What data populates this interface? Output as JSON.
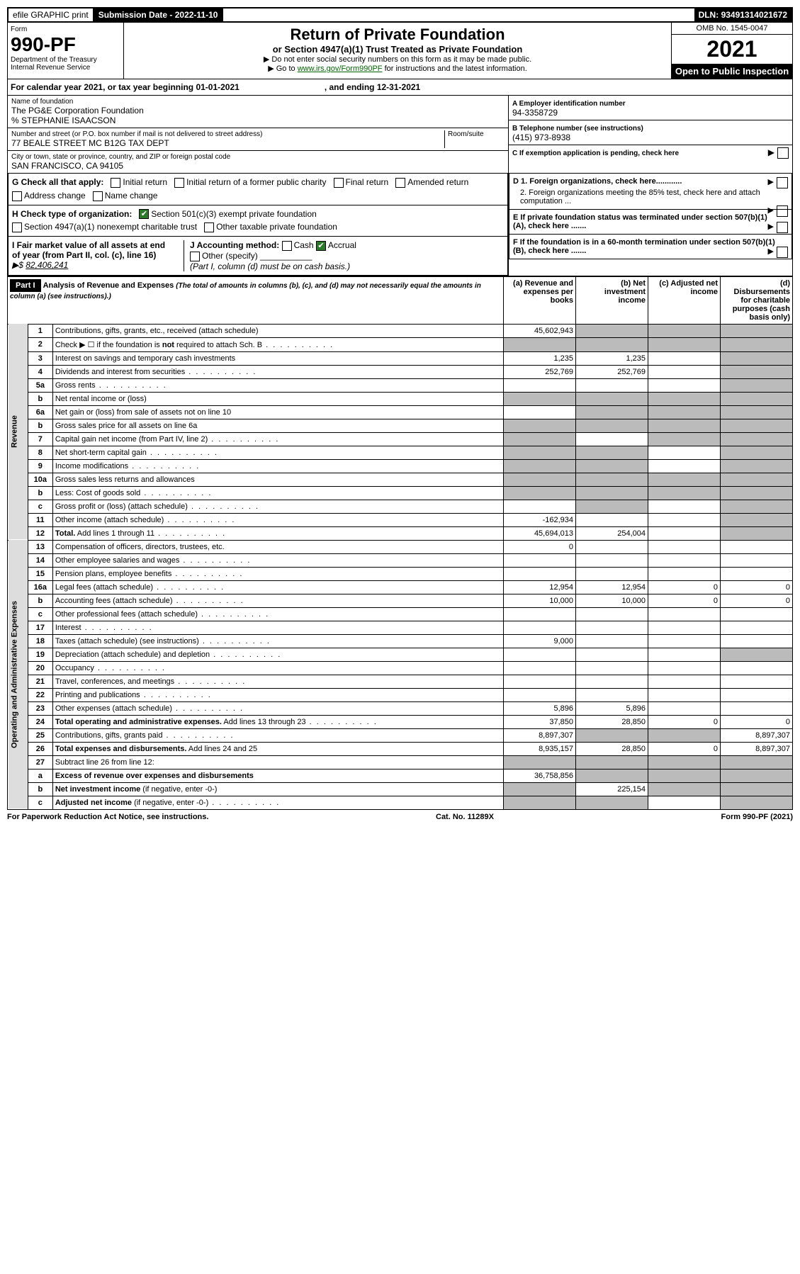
{
  "top": {
    "efile": "efile GRAPHIC print",
    "subdate_lbl": "Submission Date - ",
    "subdate": "2022-11-10",
    "dln_lbl": "DLN: ",
    "dln": "93491314021672"
  },
  "hdr": {
    "form": "Form",
    "formno": "990-PF",
    "dept": "Department of the Treasury",
    "irs": "Internal Revenue Service",
    "title": "Return of Private Foundation",
    "sub": "or Section 4947(a)(1) Trust Treated as Private Foundation",
    "i1": "▶ Do not enter social security numbers on this form as it may be made public.",
    "i2": "▶ Go to ",
    "i2link": "www.irs.gov/Form990PF",
    "i2b": " for instructions and the latest information.",
    "omb": "OMB No. 1545-0047",
    "year": "2021",
    "open": "Open to Public Inspection"
  },
  "cal": {
    "a": "For calendar year 2021, or tax year beginning 01-01-2021",
    "b": ", and ending 12-31-2021"
  },
  "name": {
    "lbl": "Name of foundation",
    "v": "The PG&E Corporation Foundation",
    "c": "% STEPHANIE ISAACSON",
    "addr_lbl": "Number and street (or P.O. box number if mail is not delivered to street address)",
    "addr": "77 BEALE STREET MC B12G TAX DEPT",
    "room": "Room/suite",
    "city_lbl": "City or town, state or province, country, and ZIP or foreign postal code",
    "city": "SAN FRANCISCO, CA  94105"
  },
  "r": {
    "A_lbl": "A Employer identification number",
    "A": "94-3358729",
    "B_lbl": "B Telephone number (see instructions)",
    "B": "(415) 973-8938",
    "C": "C If exemption application is pending, check here",
    "D1": "D 1. Foreign organizations, check here............",
    "D2": "2. Foreign organizations meeting the 85% test, check here and attach computation ...",
    "E": "E  If private foundation status was terminated under section 507(b)(1)(A), check here .......",
    "F": "F  If the foundation is in a 60-month termination under section 507(b)(1)(B), check here ......."
  },
  "G": {
    "lbl": "G Check all that apply:",
    "o1": "Initial return",
    "o2": "Initial return of a former public charity",
    "o3": "Final return",
    "o4": "Amended return",
    "o5": "Address change",
    "o6": "Name change"
  },
  "H": {
    "lbl": "H Check type of organization:",
    "o1": "Section 501(c)(3) exempt private foundation",
    "o2": "Section 4947(a)(1) nonexempt charitable trust",
    "o3": "Other taxable private foundation"
  },
  "I": {
    "lbl": "I Fair market value of all assets at end of year (from Part II, col. (c), line 16)",
    "pre": "▶$",
    "v": "82,406,241"
  },
  "J": {
    "lbl": "J Accounting method:",
    "o1": "Cash",
    "o2": "Accrual",
    "o3": "Other (specify)",
    "note": "(Part I, column (d) must be on cash basis.)"
  },
  "p1": {
    "part": "Part I",
    "title": "Analysis of Revenue and Expenses",
    "note": "(The total of amounts in columns (b), (c), and (d) may not necessarily equal the amounts in column (a) (see instructions).)",
    "ca": "(a)   Revenue and expenses per books",
    "cb": "(b)   Net investment income",
    "cc": "(c)   Adjusted net income",
    "cd": "(d)  Disbursements for charitable purposes (cash basis only)"
  },
  "side": {
    "rev": "Revenue",
    "exp": "Operating and Administrative Expenses"
  },
  "rows": [
    {
      "n": "1",
      "d": "Contributions, gifts, grants, etc., received (attach schedule)",
      "a": "45,602,943",
      "gb": true,
      "gc": true,
      "gd": true
    },
    {
      "n": "2",
      "d": "Check ▶ ☐ if the foundation is <b>not</b> required to attach Sch. B",
      "dots": true,
      "ga": true,
      "gb": true,
      "gc": true,
      "gd": true
    },
    {
      "n": "3",
      "d": "Interest on savings and temporary cash investments",
      "a": "1,235",
      "b": "1,235",
      "gd": true
    },
    {
      "n": "4",
      "d": "Dividends and interest from securities",
      "dots": true,
      "a": "252,769",
      "b": "252,769",
      "gd": true
    },
    {
      "n": "5a",
      "d": "Gross rents",
      "dots": true,
      "gd": true
    },
    {
      "n": "b",
      "d": "Net rental income or (loss)",
      "ga": true,
      "gb": true,
      "gc": true,
      "gd": true
    },
    {
      "n": "6a",
      "d": "Net gain or (loss) from sale of assets not on line 10",
      "gb": true,
      "gc": true,
      "gd": true
    },
    {
      "n": "b",
      "d": "Gross sales price for all assets on line 6a",
      "ga": true,
      "gb": true,
      "gc": true,
      "gd": true
    },
    {
      "n": "7",
      "d": "Capital gain net income (from Part IV, line 2)",
      "dots": true,
      "ga": true,
      "gc": true,
      "gd": true
    },
    {
      "n": "8",
      "d": "Net short-term capital gain",
      "dots": true,
      "ga": true,
      "gb": true,
      "gd": true
    },
    {
      "n": "9",
      "d": "Income modifications",
      "dots": true,
      "ga": true,
      "gb": true,
      "gd": true
    },
    {
      "n": "10a",
      "d": "Gross sales less returns and allowances",
      "ga": true,
      "gb": true,
      "gc": true,
      "gd": true
    },
    {
      "n": "b",
      "d": "Less: Cost of goods sold",
      "dots": true,
      "ga": true,
      "gb": true,
      "gc": true,
      "gd": true
    },
    {
      "n": "c",
      "d": "Gross profit or (loss) (attach schedule)",
      "dots": true,
      "gb": true,
      "gd": true
    },
    {
      "n": "11",
      "d": "Other income (attach schedule)",
      "dots": true,
      "a": "-162,934",
      "gd": true
    },
    {
      "n": "12",
      "d": "<b>Total.</b> Add lines 1 through 11",
      "dots": true,
      "a": "45,694,013",
      "b": "254,004",
      "gd": true
    },
    {
      "n": "13",
      "d": "Compensation of officers, directors, trustees, etc.",
      "a": "0"
    },
    {
      "n": "14",
      "d": "Other employee salaries and wages",
      "dots": true
    },
    {
      "n": "15",
      "d": "Pension plans, employee benefits",
      "dots": true
    },
    {
      "n": "16a",
      "d": "Legal fees (attach schedule)",
      "dots": true,
      "a": "12,954",
      "b": "12,954",
      "c": "0",
      "dd": "0"
    },
    {
      "n": "b",
      "d": "Accounting fees (attach schedule)",
      "dots": true,
      "a": "10,000",
      "b": "10,000",
      "c": "0",
      "dd": "0"
    },
    {
      "n": "c",
      "d": "Other professional fees (attach schedule)",
      "dots": true
    },
    {
      "n": "17",
      "d": "Interest",
      "dots": true
    },
    {
      "n": "18",
      "d": "Taxes (attach schedule) (see instructions)",
      "dots": true,
      "a": "9,000"
    },
    {
      "n": "19",
      "d": "Depreciation (attach schedule) and depletion",
      "dots": true,
      "gd": true
    },
    {
      "n": "20",
      "d": "Occupancy",
      "dots": true
    },
    {
      "n": "21",
      "d": "Travel, conferences, and meetings",
      "dots": true
    },
    {
      "n": "22",
      "d": "Printing and publications",
      "dots": true
    },
    {
      "n": "23",
      "d": "Other expenses (attach schedule)",
      "dots": true,
      "a": "5,896",
      "b": "5,896"
    },
    {
      "n": "24",
      "d": "<b>Total operating and administrative expenses.</b> Add lines 13 through 23",
      "dots": true,
      "a": "37,850",
      "b": "28,850",
      "c": "0",
      "dd": "0"
    },
    {
      "n": "25",
      "d": "Contributions, gifts, grants paid",
      "dots": true,
      "a": "8,897,307",
      "gb": true,
      "gc": true,
      "dd": "8,897,307"
    },
    {
      "n": "26",
      "d": "<b>Total expenses and disbursements.</b> Add lines 24 and 25",
      "a": "8,935,157",
      "b": "28,850",
      "c": "0",
      "dd": "8,897,307"
    },
    {
      "n": "27",
      "d": "Subtract line 26 from line 12:",
      "ga": true,
      "gb": true,
      "gc": true,
      "gd": true
    },
    {
      "n": "a",
      "d": "<b>Excess of revenue over expenses and disbursements</b>",
      "a": "36,758,856",
      "gb": true,
      "gc": true,
      "gd": true
    },
    {
      "n": "b",
      "d": "<b>Net investment income</b> (if negative, enter -0-)",
      "ga": true,
      "b": "225,154",
      "gc": true,
      "gd": true
    },
    {
      "n": "c",
      "d": "<b>Adjusted net income</b> (if negative, enter -0-)",
      "dots": true,
      "ga": true,
      "gb": true,
      "gd": true
    }
  ],
  "foot": {
    "a": "For Paperwork Reduction Act Notice, see instructions.",
    "b": "Cat. No. 11289X",
    "c": "Form 990-PF (2021)"
  }
}
